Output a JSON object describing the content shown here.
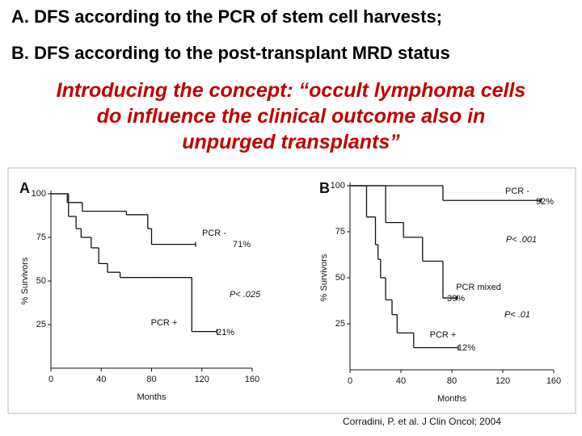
{
  "header": {
    "title_lines": [
      "A. DFS according to  the PCR of stem cell harvests;",
      "B. DFS according to the post-transplant MRD status"
    ],
    "subtitle_lines": [
      "Introducing the concept:  “occult lymphoma cells",
      "do influence the clinical outcome also in",
      "unpurged transplants”"
    ],
    "citation": "Corradini, P. et al. J Clin Oncol; 2004"
  },
  "chart_data": [
    {
      "type": "line",
      "step": true,
      "panel_label": "A",
      "x_label": "Months",
      "y_label": "% Survivors",
      "xlim": [
        0,
        160
      ],
      "ylim": [
        0,
        100
      ],
      "xticks": [
        0,
        40,
        80,
        120,
        160
      ],
      "yticks": [
        25,
        50,
        75,
        100
      ],
      "annotations": [
        "P< .025"
      ],
      "series": [
        {
          "name": "PCR -",
          "color": "#111111",
          "end_label": "71%",
          "x": [
            0,
            13,
            25,
            60,
            77,
            80,
            115
          ],
          "values": [
            100,
            95,
            90,
            88,
            80,
            71,
            71
          ]
        },
        {
          "name": "PCR +",
          "color": "#111111",
          "end_label": "21%",
          "x": [
            0,
            14,
            20,
            24,
            32,
            38,
            45,
            55,
            85,
            112,
            132
          ],
          "values": [
            100,
            87,
            80,
            75,
            69,
            60,
            55,
            52,
            52,
            21,
            21
          ]
        }
      ]
    },
    {
      "type": "line",
      "step": true,
      "panel_label": "B",
      "x_label": "Months",
      "y_label": "% Survivors",
      "xlim": [
        0,
        160
      ],
      "ylim": [
        0,
        100
      ],
      "xticks": [
        0,
        40,
        80,
        120,
        160
      ],
      "yticks": [
        25,
        50,
        75,
        100
      ],
      "annotations": [
        "P< .001",
        "P< .01"
      ],
      "series": [
        {
          "name": "PCR -",
          "color": "#111111",
          "end_label": "92%",
          "x": [
            0,
            73,
            150
          ],
          "values": [
            100,
            92,
            92
          ]
        },
        {
          "name": "PCR mixed",
          "color": "#111111",
          "end_label": "39%",
          "x": [
            0,
            28,
            42,
            57,
            73,
            84
          ],
          "values": [
            100,
            80,
            72,
            59,
            39,
            39
          ]
        },
        {
          "name": "PCR +",
          "color": "#111111",
          "end_label": "12%",
          "x": [
            0,
            13,
            20,
            22,
            24,
            28,
            33,
            37,
            50,
            85
          ],
          "values": [
            100,
            83,
            68,
            60,
            50,
            38,
            30,
            20,
            12,
            12
          ]
        }
      ]
    }
  ]
}
